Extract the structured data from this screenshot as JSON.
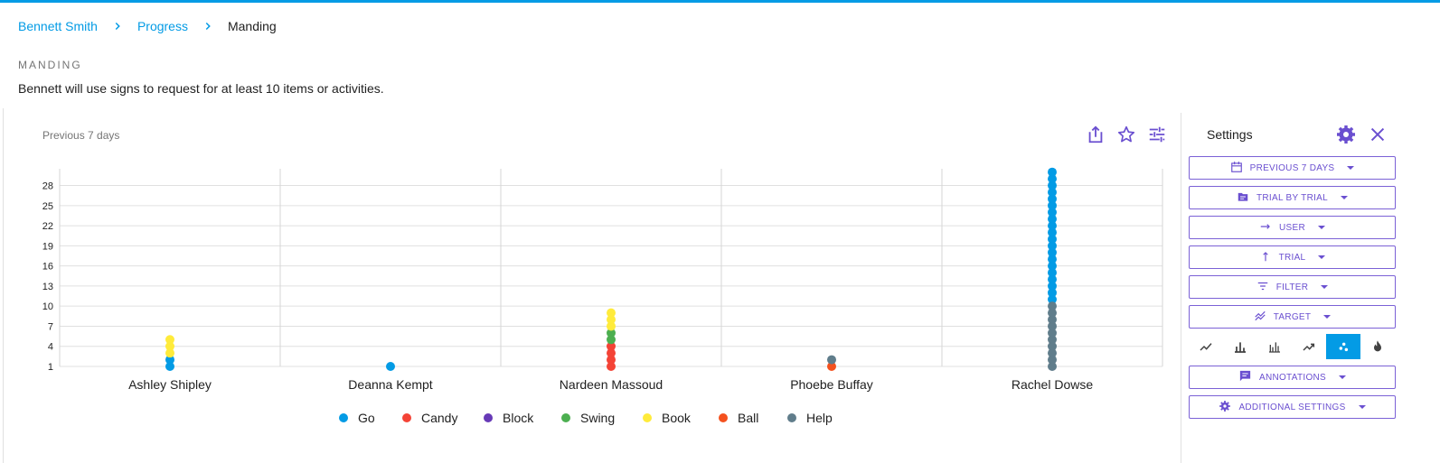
{
  "breadcrumb": {
    "items": [
      "Bennett Smith",
      "Progress"
    ],
    "current": "Manding"
  },
  "goal": {
    "label": "MANDING",
    "description": "Bennett will use signs to request for at least 10 items or activities."
  },
  "chart_header": {
    "period": "Previous 7 days",
    "actions": [
      "share-icon",
      "star-icon",
      "tune-icon"
    ]
  },
  "settings": {
    "title": "Settings",
    "buttons": [
      {
        "label": "PREVIOUS 7 DAYS",
        "icon": "calendar-icon"
      },
      {
        "label": "TRIAL BY TRIAL",
        "icon": "folder-icon"
      },
      {
        "label": "USER",
        "icon": "arrow-right-icon"
      },
      {
        "label": "TRIAL",
        "icon": "arrow-up-icon"
      },
      {
        "label": "FILTER",
        "icon": "filter-icon"
      },
      {
        "label": "TARGET",
        "icon": "target-icon"
      }
    ],
    "chart_types": [
      "line-chart-icon",
      "bar-chart-icon",
      "grouped-bar-chart-icon",
      "trend-chart-icon",
      "scatter-chart-icon",
      "heat-icon"
    ],
    "active_chart_type": "scatter-chart-icon",
    "bottom_buttons": [
      {
        "label": "ANNOTATIONS",
        "icon": "comment-icon"
      },
      {
        "label": "ADDITIONAL SETTINGS",
        "icon": "gear-icon"
      }
    ]
  },
  "colors": {
    "accent": "#039be5",
    "settings_purple": "#6a4fd0"
  },
  "chart_data": {
    "type": "scatter",
    "categories": [
      "Ashley Shipley",
      "Deanna Kempt",
      "Nardeen Massoud",
      "Phoebe Buffay",
      "Rachel Dowse"
    ],
    "yticks": [
      1,
      4,
      7,
      10,
      13,
      16,
      19,
      22,
      25,
      28
    ],
    "ylim": [
      1,
      30.5
    ],
    "grid": true,
    "legend_position": "bottom",
    "series": [
      {
        "name": "Go",
        "color": "#039be5",
        "points": [
          {
            "category": "Ashley Shipley",
            "trials": [
              1,
              2
            ]
          },
          {
            "category": "Deanna Kempt",
            "trials": [
              1
            ]
          },
          {
            "category": "Rachel Dowse",
            "trials": [
              11,
              12,
              13,
              14,
              15,
              16,
              17,
              18,
              19,
              20,
              21,
              22,
              23,
              24,
              25,
              26,
              27,
              28,
              29,
              30
            ]
          }
        ]
      },
      {
        "name": "Candy",
        "color": "#f44336",
        "points": [
          {
            "category": "Nardeen Massoud",
            "trials": [
              1,
              2,
              3,
              4
            ]
          }
        ]
      },
      {
        "name": "Block",
        "color": "#673ab7",
        "points": []
      },
      {
        "name": "Swing",
        "color": "#4caf50",
        "points": [
          {
            "category": "Nardeen Massoud",
            "trials": [
              5,
              6
            ]
          }
        ]
      },
      {
        "name": "Book",
        "color": "#ffeb3b",
        "points": [
          {
            "category": "Ashley Shipley",
            "trials": [
              3,
              4,
              5
            ]
          },
          {
            "category": "Nardeen Massoud",
            "trials": [
              7,
              8,
              9
            ]
          }
        ]
      },
      {
        "name": "Ball",
        "color": "#f4511e",
        "points": [
          {
            "category": "Phoebe Buffay",
            "trials": [
              1
            ]
          }
        ]
      },
      {
        "name": "Help",
        "color": "#607d8b",
        "points": [
          {
            "category": "Phoebe Buffay",
            "trials": [
              2
            ]
          },
          {
            "category": "Rachel Dowse",
            "trials": [
              1,
              2,
              3,
              4,
              5,
              6,
              7,
              8,
              9,
              10
            ]
          }
        ]
      }
    ]
  }
}
